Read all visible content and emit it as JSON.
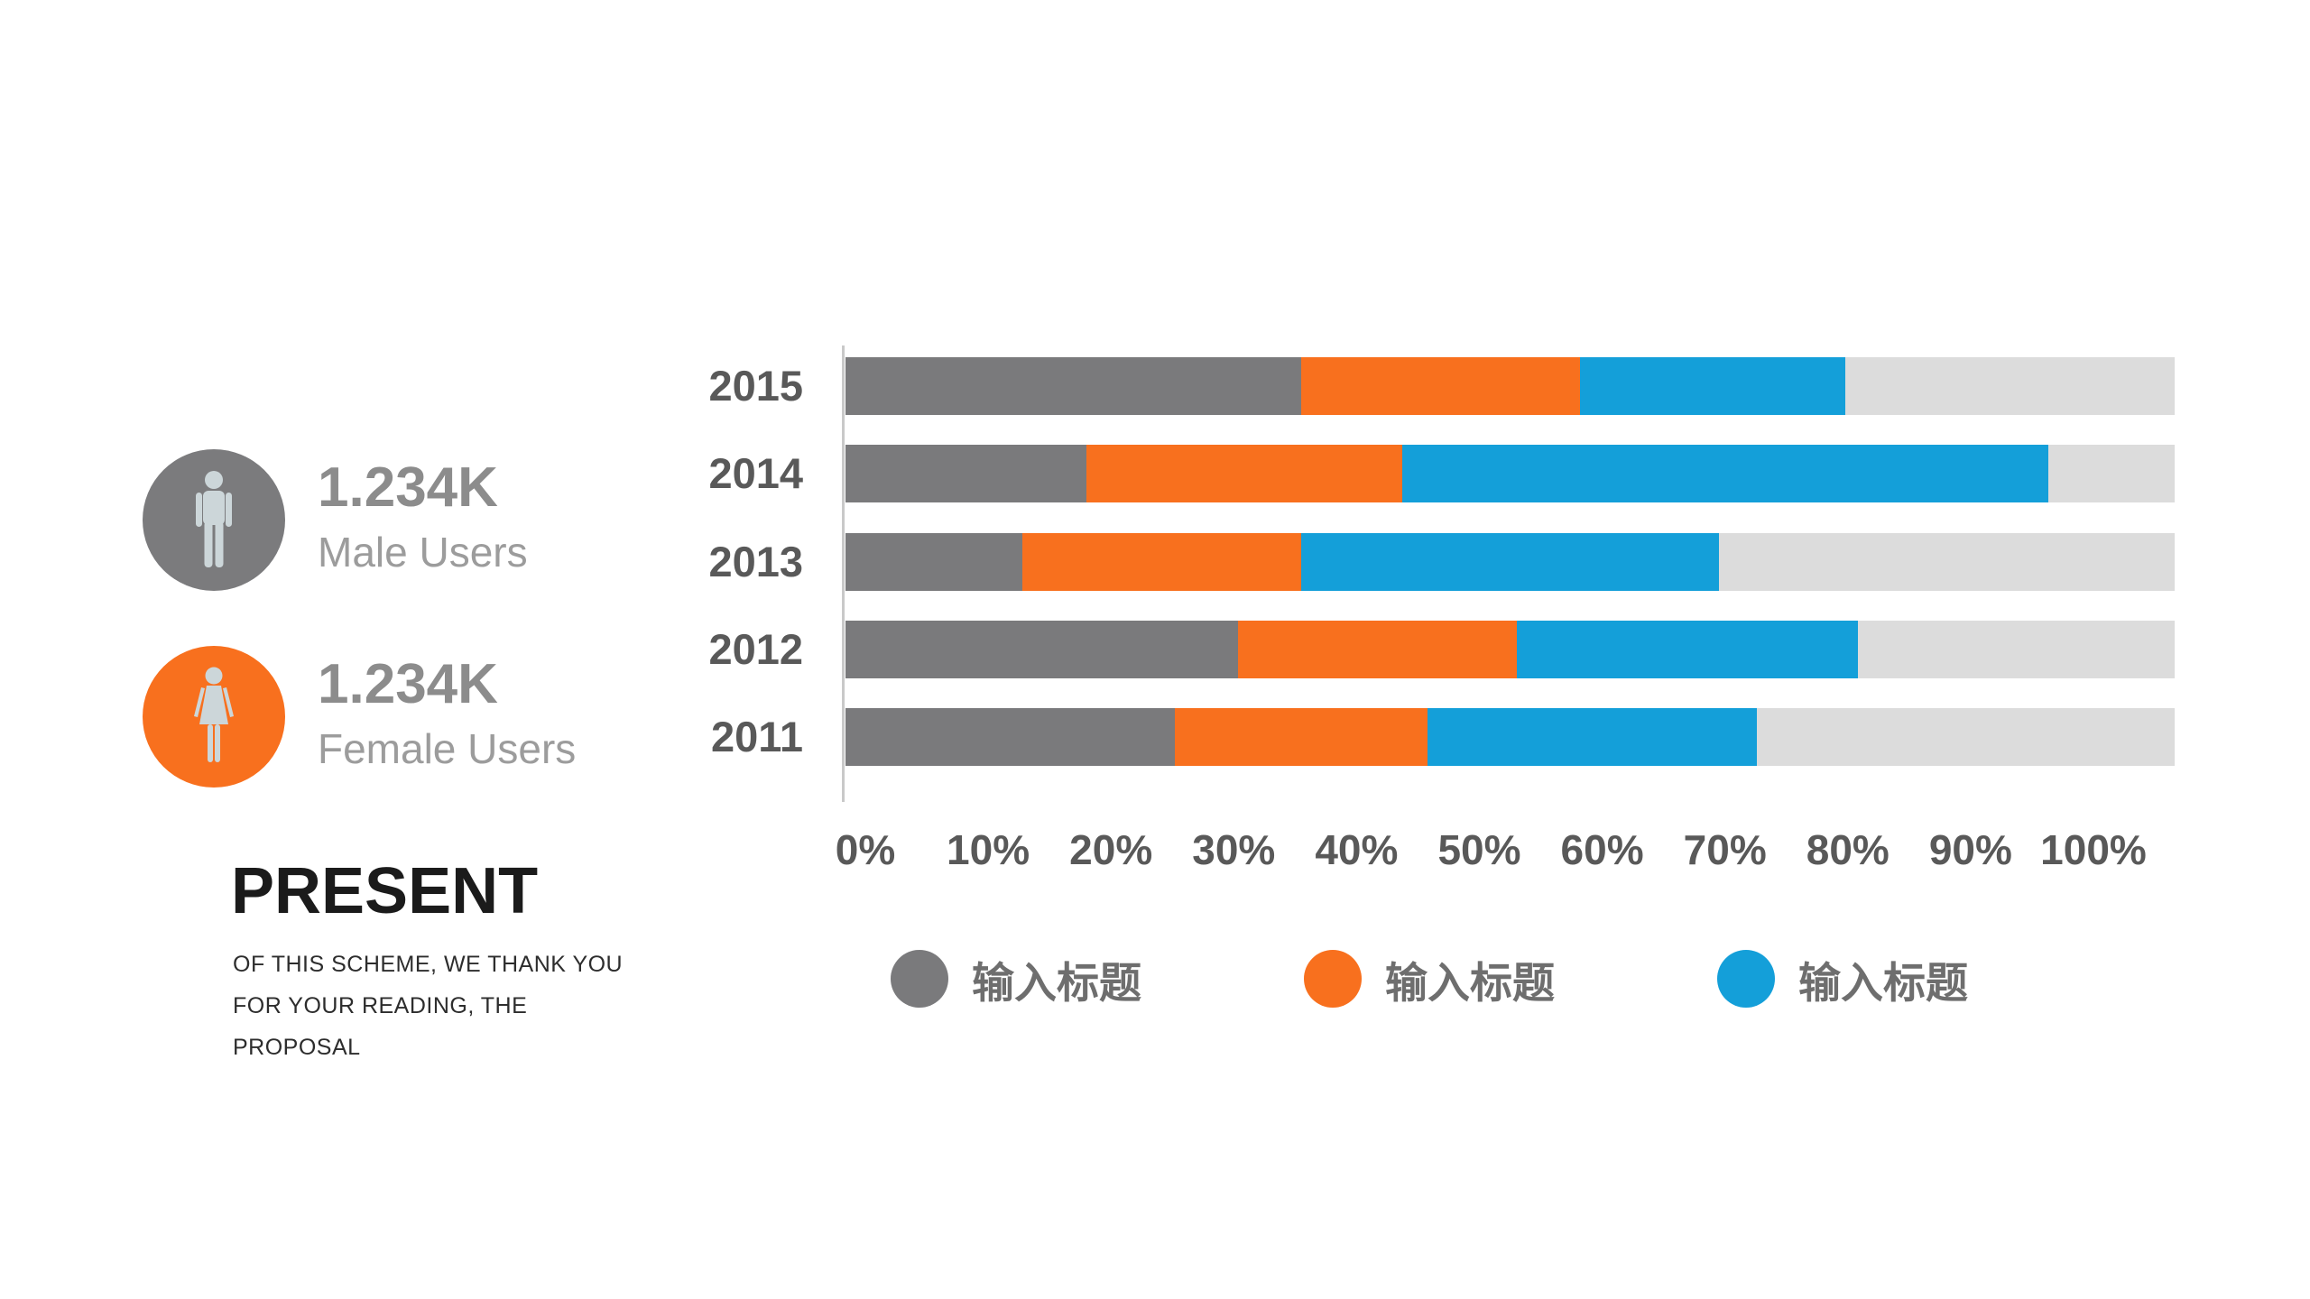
{
  "left_panel": {
    "male": {
      "value": "1.234K",
      "label": "Male Users"
    },
    "female": {
      "value": "1.234K",
      "label": "Female Users"
    },
    "present_title": "PRESENT",
    "present_lines": [
      "OF THIS SCHEME, WE THANK YOU",
      "FOR YOUR READING, THE",
      "PROPOSAL"
    ]
  },
  "colors": {
    "male_circle": "#7b7b7d",
    "female_circle": "#f8701e",
    "icon": "#ccd6d9",
    "track": "#dcdcdc",
    "axis_line": "#c9c9c9",
    "axis_text": "#595959",
    "legend_text": "#6e6e6e",
    "stat_value": "#8c8c8c",
    "stat_label": "#9c9c9c"
  },
  "chart_data": {
    "type": "bar",
    "orientation": "horizontal",
    "stacked": true,
    "title": "",
    "xlabel": "",
    "ylabel": "",
    "categories": [
      "2015",
      "2014",
      "2013",
      "2012",
      "2011"
    ],
    "series": [
      {
        "name": "输入标题",
        "color": "#7a7a7c",
        "values": [
          36,
          19,
          14,
          31,
          26
        ]
      },
      {
        "name": "输入标题",
        "color": "#f8701e",
        "values": [
          22,
          25,
          22,
          22,
          20
        ]
      },
      {
        "name": "输入标题",
        "color": "#149fd9",
        "values": [
          21,
          51,
          33,
          27,
          26
        ]
      }
    ],
    "values_unit": "percent",
    "x_ticks": [
      "0%",
      "10%",
      "20%",
      "30%",
      "40%",
      "50%",
      "60%",
      "70%",
      "80%",
      "90%",
      "100%"
    ],
    "xlim": [
      0,
      105
    ],
    "grid": false,
    "legend_position": "bottom",
    "track_color": "#dcdcdc"
  }
}
